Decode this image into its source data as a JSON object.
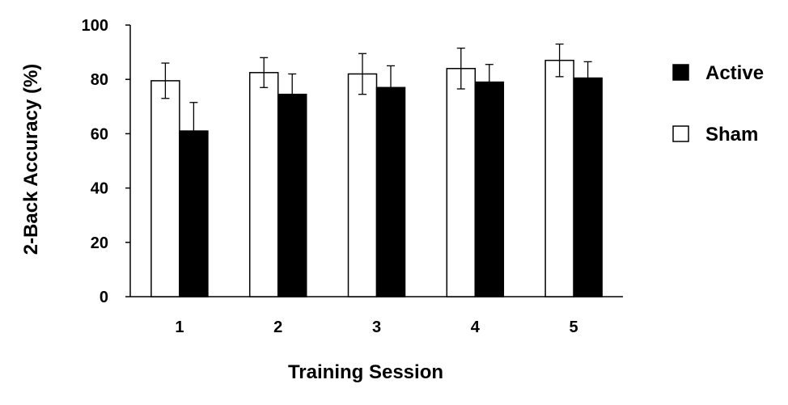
{
  "chart_data": {
    "type": "bar",
    "title": "",
    "xlabel": "Training Session",
    "ylabel": "2-Back Accuracy (%)",
    "ylim": [
      0,
      100
    ],
    "yticks": [
      0,
      20,
      40,
      60,
      80,
      100
    ],
    "categories": [
      "1",
      "2",
      "3",
      "4",
      "5"
    ],
    "series": [
      {
        "name": "Sham",
        "fill": "#ffffff",
        "values": [
          79.5,
          82.5,
          82,
          84,
          87
        ],
        "error": [
          6.5,
          5.5,
          7.5,
          7.5,
          6
        ]
      },
      {
        "name": "Active",
        "fill": "#000000",
        "values": [
          61,
          74.5,
          77,
          79,
          80.5
        ],
        "error": [
          10.5,
          7.5,
          8,
          6.5,
          6
        ]
      }
    ],
    "legend": {
      "position": "right",
      "order": [
        "Active",
        "Sham"
      ]
    },
    "grid": false
  }
}
